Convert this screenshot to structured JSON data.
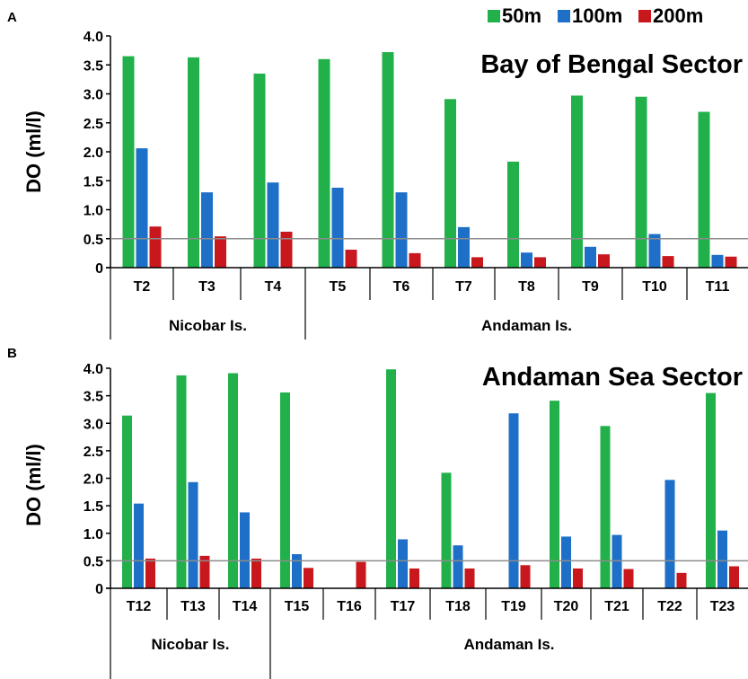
{
  "colors": {
    "s50": "#22b04b",
    "s100": "#1e6fc8",
    "s200": "#c8171d",
    "ref": "#8c8c8c"
  },
  "legend": [
    "50m",
    "100m",
    "200m"
  ],
  "yticks": [
    "0",
    "0.5",
    "1.0",
    "1.5",
    "2.0",
    "2.5",
    "3.0",
    "3.5",
    "4.0"
  ],
  "chart_data": [
    {
      "type": "bar",
      "panel": "A",
      "title": "Bay of Bengal Sector",
      "ylabel": "DO (ml/l)",
      "ylim": [
        0,
        4.0
      ],
      "reference_line": 0.5,
      "categories": [
        "T2",
        "T3",
        "T4",
        "T5",
        "T6",
        "T7",
        "T8",
        "T9",
        "T10",
        "T11"
      ],
      "groups": [
        {
          "label": "Nicobar Is.",
          "stations": [
            "T2",
            "T3",
            "T4"
          ]
        },
        {
          "label": "Andaman Is.",
          "stations": [
            "T5",
            "T6",
            "T7",
            "T8",
            "T9",
            "T10",
            "T11"
          ]
        }
      ],
      "series": [
        {
          "name": "50m",
          "values": [
            3.65,
            3.63,
            3.35,
            3.6,
            3.72,
            2.91,
            1.83,
            2.97,
            2.95,
            2.69
          ]
        },
        {
          "name": "100m",
          "values": [
            2.06,
            1.3,
            1.47,
            1.38,
            1.3,
            0.7,
            0.26,
            0.36,
            0.58,
            0.22
          ]
        },
        {
          "name": "200m",
          "values": [
            0.71,
            0.54,
            0.62,
            0.31,
            0.25,
            0.18,
            0.18,
            0.23,
            0.2,
            0.19
          ]
        }
      ]
    },
    {
      "type": "bar",
      "panel": "B",
      "title": "Andaman Sea Sector",
      "ylabel": "DO (ml/l)",
      "ylim": [
        0,
        4.0
      ],
      "reference_line": 0.5,
      "categories": [
        "T12",
        "T13",
        "T14",
        "T15",
        "T16",
        "T17",
        "T18",
        "T19",
        "T20",
        "T21",
        "T22",
        "T23"
      ],
      "groups": [
        {
          "label": "Nicobar Is.",
          "stations": [
            "T12",
            "T13",
            "T14"
          ]
        },
        {
          "label": "Andaman Is.",
          "stations": [
            "T15",
            "T16",
            "T17",
            "T18",
            "T19",
            "T20",
            "T21",
            "T22",
            "T23"
          ]
        }
      ],
      "series": [
        {
          "name": "50m",
          "values": [
            3.14,
            3.87,
            3.91,
            3.56,
            null,
            3.98,
            2.1,
            null,
            3.41,
            2.95,
            null,
            3.55
          ]
        },
        {
          "name": "100m",
          "values": [
            1.54,
            1.93,
            1.38,
            0.62,
            null,
            0.89,
            0.78,
            3.18,
            0.94,
            0.97,
            1.97,
            1.05
          ]
        },
        {
          "name": "200m",
          "values": [
            0.54,
            0.59,
            0.54,
            0.37,
            0.48,
            0.36,
            0.36,
            0.42,
            0.36,
            0.35,
            0.28,
            0.4
          ]
        }
      ]
    }
  ]
}
